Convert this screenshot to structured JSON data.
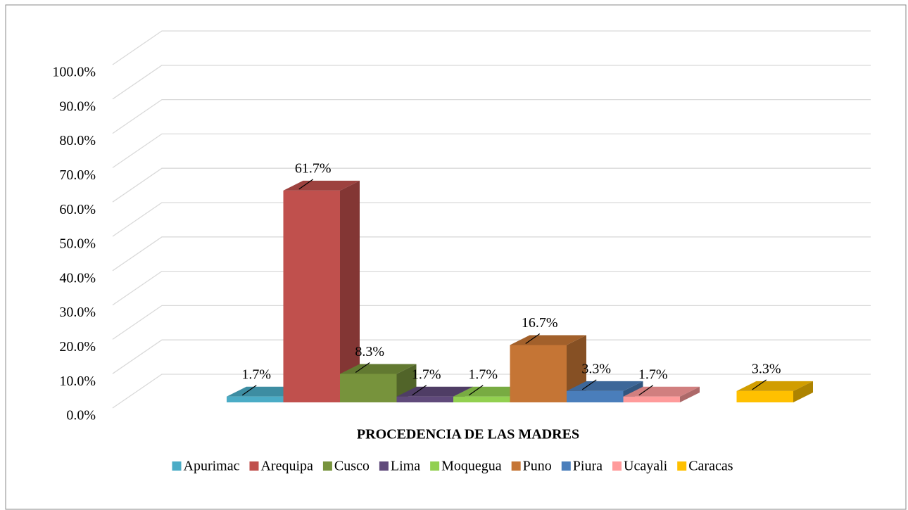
{
  "chart_data": {
    "type": "bar3d",
    "x_label": "PROCEDENCIA DE LAS MADRES",
    "ylim": [
      0,
      100
    ],
    "yticks": [
      {
        "value": 0,
        "label": "0.0%"
      },
      {
        "value": 10,
        "label": "10.0%"
      },
      {
        "value": 20,
        "label": "20.0%"
      },
      {
        "value": 30,
        "label": "30.0%"
      },
      {
        "value": 40,
        "label": "40.0%"
      },
      {
        "value": 50,
        "label": "50.0%"
      },
      {
        "value": 60,
        "label": "60.0%"
      },
      {
        "value": 70,
        "label": "70.0%"
      },
      {
        "value": 80,
        "label": "80.0%"
      },
      {
        "value": 90,
        "label": "90.0%"
      },
      {
        "value": 100,
        "label": "100.0%"
      }
    ],
    "grid": true,
    "legend": "bottom",
    "series": [
      {
        "name": "Apurimac",
        "color": "#4bacc6",
        "values": [
          1.7
        ],
        "value_labels": [
          "1.7%"
        ]
      },
      {
        "name": "Arequipa",
        "color": "#c0504d",
        "values": [
          61.7
        ],
        "value_labels": [
          "61.7%"
        ]
      },
      {
        "name": "Cusco",
        "color": "#77933c",
        "values": [
          8.3
        ],
        "value_labels": [
          "8.3%"
        ]
      },
      {
        "name": "Lima",
        "color": "#604a7b",
        "values": [
          1.7
        ],
        "value_labels": [
          "1.7%"
        ]
      },
      {
        "name": "Moquegua",
        "color": "#92d050",
        "values": [
          1.7
        ],
        "value_labels": [
          "1.7%"
        ]
      },
      {
        "name": "Puno",
        "color": "#c57535",
        "values": [
          16.7
        ],
        "value_labels": [
          "16.7%"
        ]
      },
      {
        "name": "Piura",
        "color": "#4a7ebb",
        "values": [
          3.3
        ],
        "value_labels": [
          "3.3%"
        ]
      },
      {
        "name": "Ucayali",
        "color": "#ff9b9b",
        "values": [
          1.7
        ],
        "value_labels": [
          "1.7%"
        ]
      },
      {
        "name": "Caracas",
        "color": "#ffc000",
        "values": [
          3.3
        ],
        "value_labels": [
          "3.3%"
        ]
      }
    ]
  }
}
